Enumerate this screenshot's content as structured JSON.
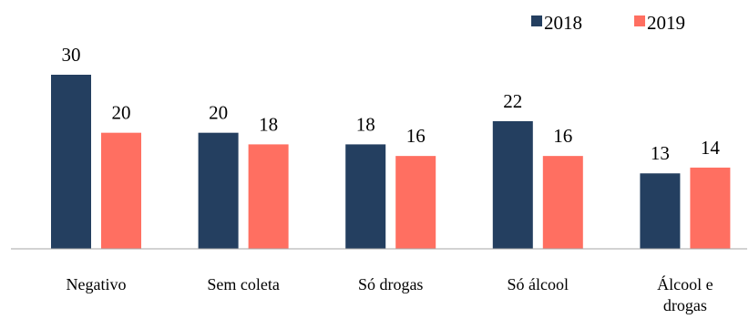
{
  "chart_data": {
    "type": "bar",
    "categories": [
      "Negativo",
      "Sem coleta",
      "Só drogas",
      "Só álcool",
      "Álcool e drogas"
    ],
    "category_lines": [
      [
        "Negativo"
      ],
      [
        "Sem coleta"
      ],
      [
        "Só drogas"
      ],
      [
        "Só álcool"
      ],
      [
        "Álcool e",
        "drogas"
      ]
    ],
    "series": [
      {
        "name": "2018",
        "values": [
          30,
          20,
          18,
          22,
          13
        ],
        "color": "#243f60"
      },
      {
        "name": "2019",
        "values": [
          20,
          18,
          16,
          16,
          14
        ],
        "color": "#ff6f61"
      }
    ],
    "ylim": [
      0,
      30
    ],
    "grid": false,
    "legend_position": "top-right",
    "axis_color": "#a6a6a6"
  }
}
